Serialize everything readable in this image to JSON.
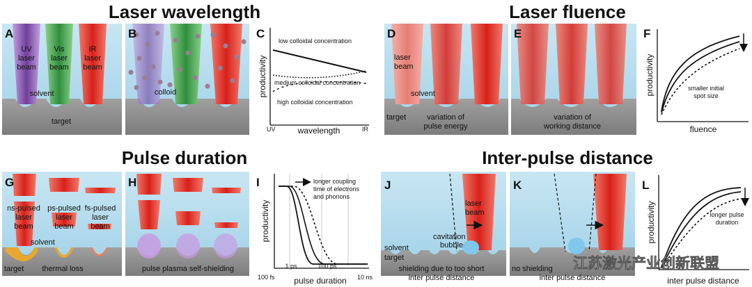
{
  "sections": {
    "laser_wavelength": "Laser wavelength",
    "laser_fluence": "Laser fluence",
    "pulse_duration": "Pulse duration",
    "inter_pulse_distance": "Inter-pulse distance"
  },
  "panels": {
    "A": {
      "letter": "A",
      "uv_beam": [
        "UV",
        "laser",
        "beam"
      ],
      "vis_beam": [
        "Vis",
        "laser",
        "beam"
      ],
      "ir_beam": [
        "IR",
        "laser",
        "beam"
      ],
      "solvent": "solvent",
      "target": "target"
    },
    "B": {
      "letter": "B",
      "colloid": "colloid"
    },
    "C": {
      "letter": "C",
      "curve1": "low colloidal concentration",
      "curve2": "medium colloidal concentration",
      "curve3": "high colloidal concentration",
      "ylabel": "productivity",
      "xlabel": "wavelength",
      "xmin": "UV",
      "xmax": "IR"
    },
    "D": {
      "letter": "D",
      "beam": [
        "laser",
        "beam"
      ],
      "solvent": "solvent",
      "target": "target",
      "caption": [
        "variation of",
        "pulse energy"
      ]
    },
    "E": {
      "letter": "E",
      "caption": [
        "variation of",
        "working distance"
      ]
    },
    "F": {
      "letter": "F",
      "ylabel": "productivity",
      "xlabel": "fluence",
      "annotation": [
        "smaller initial",
        "spot size"
      ]
    },
    "G": {
      "letter": "G",
      "ns_beam": [
        "ns-pulsed",
        "laser",
        "beam"
      ],
      "ps_beam": [
        "ps-pulsed",
        "laser",
        "beam"
      ],
      "fs_beam": [
        "fs-pulsed",
        "laser",
        "beam"
      ],
      "solvent": "solvent",
      "target": "target",
      "thermal_loss": "thermal loss"
    },
    "H": {
      "letter": "H",
      "caption": "pulse plasma self-shielding"
    },
    "I": {
      "letter": "I",
      "ylabel": "productivity",
      "xlabel": "pulse duration",
      "annotation": [
        "longer coupling",
        "time of electrons",
        "and phonons"
      ],
      "ticks": [
        "100 fs",
        "1 ps",
        "100 ps",
        "10 ns"
      ]
    },
    "J": {
      "letter": "J",
      "beam": [
        "laser",
        "beam"
      ],
      "bubble": [
        "cavitation",
        "bubble"
      ],
      "solvent": "solvent",
      "target": "target",
      "caption": [
        "shielding due to too short",
        "inter pulse distance"
      ]
    },
    "K": {
      "letter": "K",
      "caption": [
        "no shielding",
        "inter pulse distance"
      ]
    },
    "L": {
      "letter": "L",
      "ylabel": "productivity",
      "xlabel": "inter pulse distance",
      "annotation": [
        "longer pulse",
        "duration"
      ]
    }
  },
  "watermark": "江苏激光产业创新联盟",
  "colors": {
    "solvent": "#a9d6ea",
    "target": "#8e8e8e",
    "red_beam": "#d8201a",
    "green_beam": "#2f8f3d",
    "purple_beam": "#6f3f9a",
    "bubble": "#7fc8ea",
    "plasma": "#c89ae0",
    "thermal": "#e8a830"
  }
}
